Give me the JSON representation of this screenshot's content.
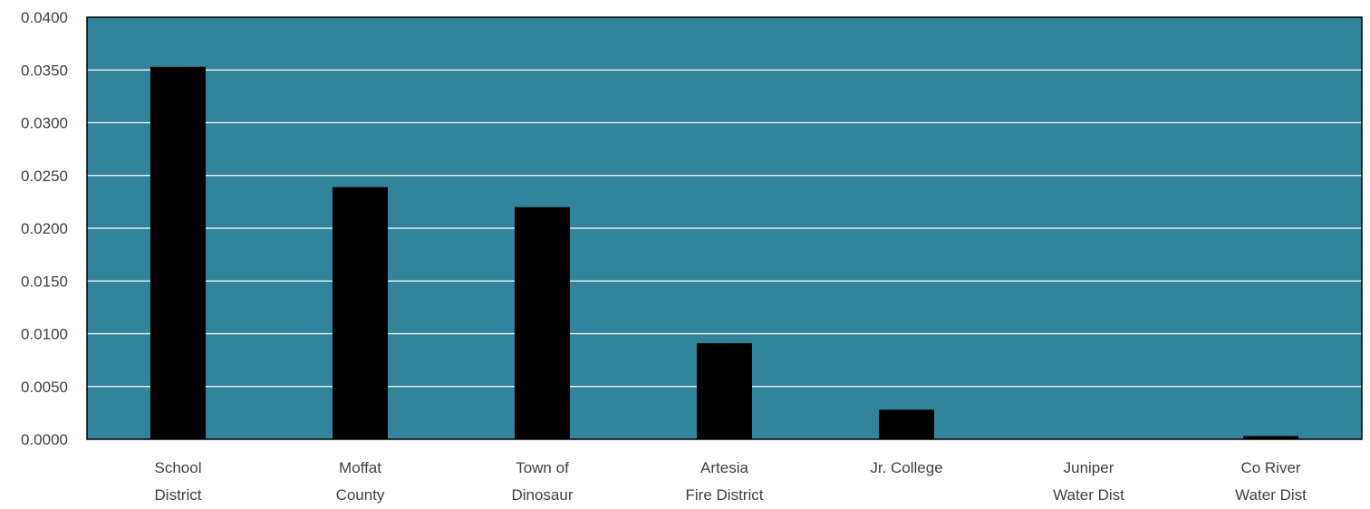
{
  "chart_data": {
    "type": "bar",
    "title": "",
    "xlabel": "",
    "ylabel": "",
    "categories": [
      [
        "School",
        "District"
      ],
      [
        "Moffat",
        "County"
      ],
      [
        "Town of",
        "Dinosaur"
      ],
      [
        "Artesia",
        "Fire District"
      ],
      [
        "Jr. College"
      ],
      [
        "Juniper",
        "Water Dist"
      ],
      [
        "Co River",
        "Water Dist"
      ]
    ],
    "values": [
      0.0353,
      0.0239,
      0.022,
      0.0091,
      0.0028,
      0.0,
      0.0003
    ],
    "ylim": [
      0,
      0.04
    ],
    "yticks": [
      "0.0000",
      "0.0050",
      "0.0100",
      "0.0150",
      "0.0200",
      "0.0250",
      "0.0300",
      "0.0350",
      "0.0400"
    ],
    "grid": true,
    "legend": "none",
    "colors": {
      "plot_background": "#31849b",
      "bar": "#000000",
      "gridline": "#ffffff",
      "frame": "#000000"
    }
  }
}
